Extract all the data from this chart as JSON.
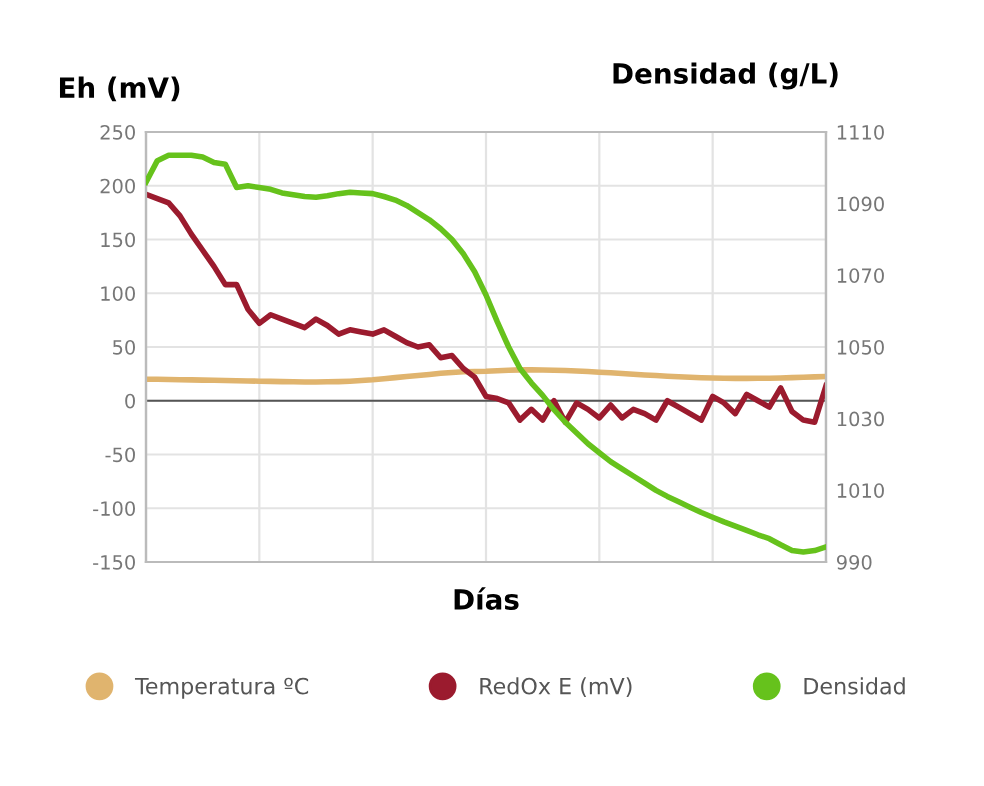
{
  "chart_data": {
    "type": "line",
    "xlabel": "Días",
    "ylabel": "Eh (mV)",
    "y2label": "Densidad (g/L)",
    "categories": [
      null,
      null,
      null,
      null,
      null,
      null,
      null,
      null,
      null,
      null,
      null,
      null,
      null,
      null,
      null,
      null,
      null,
      null,
      null,
      null,
      null,
      null,
      null,
      null,
      null,
      null,
      null,
      null,
      null,
      null,
      null,
      null,
      null,
      null,
      null,
      null,
      null,
      null,
      null,
      null,
      null,
      null,
      null,
      null,
      null,
      null,
      null,
      null,
      null,
      null,
      null,
      null,
      null,
      null,
      null,
      null,
      null,
      null,
      null,
      null,
      null
    ],
    "ylim": [
      -150,
      250
    ],
    "yticks": [
      -150,
      -100,
      -50,
      0,
      50,
      100,
      150,
      200,
      250
    ],
    "y2lim": [
      990,
      1110
    ],
    "y2ticks": [
      990,
      1010,
      1030,
      1050,
      1070,
      1090,
      1110
    ],
    "grid": true,
    "legend": "bottom",
    "marker": "none",
    "line_style": "solid",
    "ref_lines": [
      {
        "axis": "y",
        "value": 0,
        "color": "#555555"
      }
    ],
    "series": [
      {
        "name": "Temperatura ºC",
        "color": "#e0b46e",
        "values": [
          20,
          20,
          19.8,
          19.6,
          19.4,
          19.2,
          19,
          18.8,
          18.6,
          18.4,
          18.2,
          18,
          17.8,
          17.6,
          17.5,
          17.5,
          17.6,
          17.8,
          18.2,
          18.8,
          19.5,
          20.5,
          21.5,
          22.5,
          23.5,
          24.5,
          25.5,
          26.3,
          27,
          27.3,
          27.5,
          28,
          28.4,
          28.7,
          28.7,
          28.6,
          28.4,
          28.1,
          27.7,
          27.2,
          26.6,
          26,
          25.4,
          24.7,
          24,
          23.4,
          22.8,
          22.3,
          21.8,
          21.4,
          21.1,
          20.9,
          20.8,
          20.8,
          20.9,
          21,
          21.2,
          21.5,
          21.8,
          22.2,
          22.6
        ]
      },
      {
        "name": "RedOx E (mV)",
        "color": "#9b1b2e",
        "values": [
          192,
          188,
          184,
          172,
          155,
          140,
          125,
          108,
          108,
          85,
          72,
          80,
          76,
          72,
          68,
          76,
          70,
          62,
          66,
          64,
          62,
          66,
          60,
          54,
          50,
          52,
          40,
          42,
          30,
          22,
          4,
          2,
          -2,
          -18,
          -8,
          -18,
          0,
          -20,
          -2,
          -8,
          -16,
          -4,
          -16,
          -8,
          -12,
          -18,
          0,
          -6,
          -12,
          -18,
          4,
          -2,
          -12,
          6,
          0,
          -6,
          12,
          -10,
          -18,
          -20,
          14
        ]
      },
      {
        "name": "Densidad",
        "color": "#66c21c",
        "axis": "y2",
        "values": [
          1096,
          1102,
          1103.5,
          1103.5,
          1103.5,
          1103,
          1101.5,
          1101,
          1094.5,
          1095,
          1094.5,
          1094,
          1093,
          1092.5,
          1092,
          1091.8,
          1092.2,
          1092.8,
          1093.2,
          1093,
          1092.8,
          1092,
          1091,
          1089.5,
          1087.5,
          1085.5,
          1083,
          1080,
          1076,
          1071,
          1064.5,
          1057,
          1050,
          1044,
          1040,
          1036.5,
          1032.5,
          1029,
          1026,
          1023,
          1020.5,
          1018,
          1016,
          1014,
          1012,
          1010,
          1008.3,
          1006.8,
          1005.3,
          1003.8,
          1002.5,
          1001.2,
          1000,
          998.8,
          997.6,
          996.5,
          994.8,
          993.2,
          992.8,
          993.2,
          994.2
        ]
      }
    ]
  }
}
